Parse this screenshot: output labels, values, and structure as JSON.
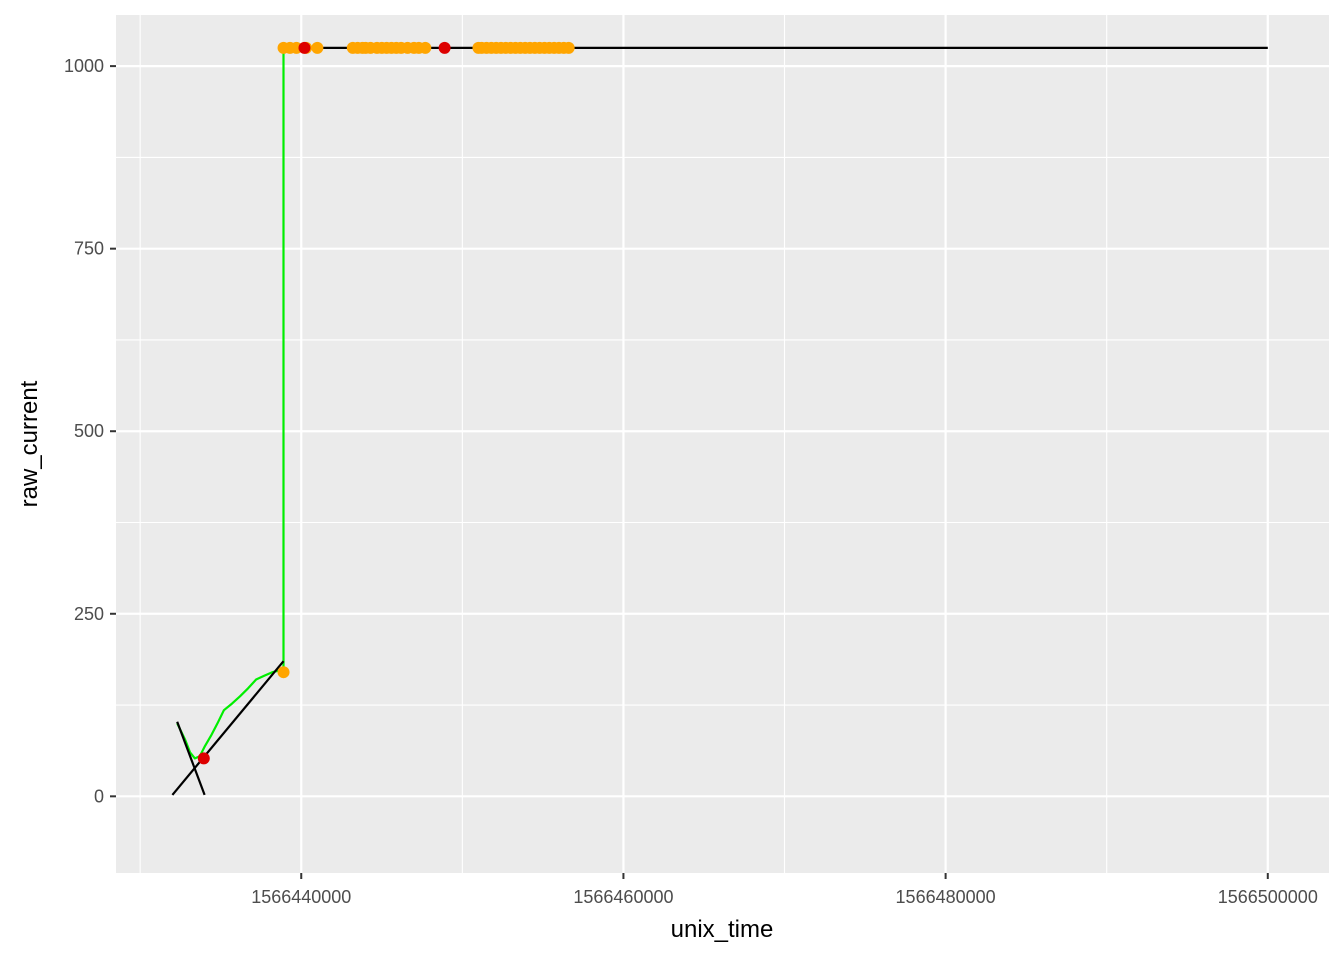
{
  "chart_data": {
    "type": "scatter",
    "title": "",
    "xlabel": "unix_time",
    "ylabel": "raw_current",
    "xlim": [
      1566428500,
      1566503800
    ],
    "ylim": [
      -105,
      1070
    ],
    "x_ticks": [
      1566440000,
      1566460000,
      1566480000,
      1566500000
    ],
    "x_tick_labels": [
      "1566440000",
      "1566460000",
      "1566480000",
      "1566500000"
    ],
    "y_ticks": [
      0,
      250,
      500,
      750,
      1000
    ],
    "y_tick_labels": [
      "0",
      "250",
      "500",
      "750",
      "1000"
    ],
    "grid": true,
    "legend": "none",
    "colors": {
      "panel": "#ebebeb",
      "grid": "#ffffff",
      "trace": "#00ee00",
      "fit_line": "#000000",
      "points": "#ffa500",
      "change_points": "#dd0000"
    },
    "series": [
      {
        "type": "line",
        "color": "#00ee00",
        "x": [
          1566432300,
          1566432800,
          1566433100,
          1566433400,
          1566433700,
          1566434000,
          1566434400,
          1566434800,
          1566435200,
          1566435700,
          1566436200,
          1566436700,
          1566437200,
          1566437700,
          1566438200,
          1566438600,
          1566438900,
          1566438900,
          1566439200
        ],
        "y": [
          100,
          77,
          60,
          52,
          55,
          68,
          83,
          100,
          118,
          127,
          137,
          148,
          160,
          165,
          170,
          172,
          170,
          1025,
          1025
        ]
      },
      {
        "type": "line",
        "color": "#000000",
        "x": [
          1566432300,
          1566434000
        ],
        "y": [
          102,
          2
        ]
      },
      {
        "type": "line",
        "color": "#000000",
        "x": [
          1566432000,
          1566438900
        ],
        "y": [
          2,
          185
        ]
      },
      {
        "type": "line",
        "color": "#000000",
        "x": [
          1566438900,
          1566500000
        ],
        "y": [
          1025,
          1025
        ]
      },
      {
        "type": "points",
        "color": "#ffa500",
        "x": [
          1566438900,
          1566438900,
          1566439300,
          1566439700,
          1566440300,
          1566441000,
          1566443200,
          1566443500,
          1566443800,
          1566444000,
          1566444300,
          1566444700,
          1566445000,
          1566445300,
          1566445600,
          1566445900,
          1566446200,
          1566446600,
          1566447000,
          1566447300,
          1566447700,
          1566451000,
          1566451200,
          1566451500,
          1566451800,
          1566452100,
          1566452400,
          1566452700,
          1566453000,
          1566453300,
          1566453600,
          1566453900,
          1566454200,
          1566454500,
          1566454800,
          1566455100,
          1566455400,
          1566455700,
          1566456000,
          1566456300,
          1566456600
        ],
        "y": [
          170,
          1025,
          1025,
          1025,
          1025,
          1025,
          1025,
          1025,
          1025,
          1025,
          1025,
          1025,
          1025,
          1025,
          1025,
          1025,
          1025,
          1025,
          1025,
          1025,
          1025,
          1025,
          1025,
          1025,
          1025,
          1025,
          1025,
          1025,
          1025,
          1025,
          1025,
          1025,
          1025,
          1025,
          1025,
          1025,
          1025,
          1025,
          1025,
          1025,
          1025
        ]
      },
      {
        "type": "points",
        "color": "#dd0000",
        "x": [
          1566433950,
          1566440200,
          1566448900
        ],
        "y": [
          52,
          1025,
          1025
        ]
      }
    ]
  }
}
